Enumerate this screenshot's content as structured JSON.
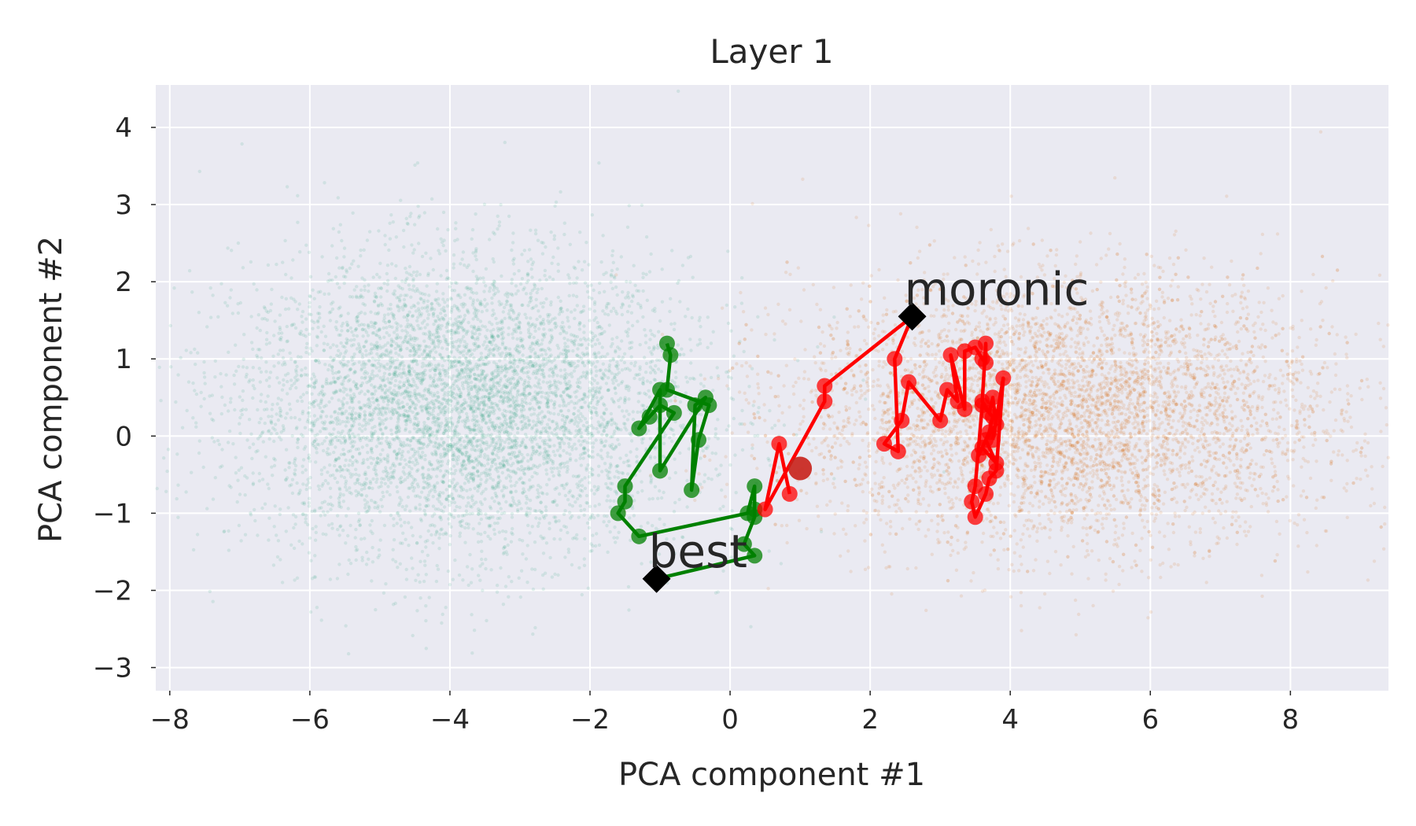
{
  "chart_data": {
    "type": "scatter",
    "title": "Layer 1",
    "xlabel": "PCA component #1",
    "ylabel": "PCA component #2",
    "xlim": [
      -8.2,
      9.4
    ],
    "ylim": [
      -3.3,
      4.55
    ],
    "xticks": [
      -8,
      -6,
      -4,
      -2,
      0,
      2,
      4,
      6,
      8
    ],
    "yticks": [
      -3,
      -2,
      -1,
      0,
      1,
      2,
      3,
      4
    ],
    "xtick_labels": [
      "−8",
      "−6",
      "−4",
      "−2",
      "0",
      "2",
      "4",
      "6",
      "8"
    ],
    "ytick_labels": [
      "−3",
      "−2",
      "−1",
      "0",
      "1",
      "2",
      "3",
      "4"
    ],
    "grid": true,
    "background_colors": {
      "plot_bg": "#eaeaf2",
      "grid": "#ffffff"
    },
    "clouds": [
      {
        "color": "#1b9e77",
        "center": [
          -3.8,
          0.4
        ],
        "spread": [
          1.6,
          0.95
        ],
        "approx_points": 6000
      },
      {
        "color": "#d95f02",
        "center": [
          4.8,
          0.3
        ],
        "spread": [
          1.9,
          0.85
        ],
        "approx_points": 6000
      }
    ],
    "trajectories": [
      {
        "color": "#008000",
        "points": [
          [
            -1.05,
            -1.85
          ],
          [
            0.35,
            -1.55
          ],
          [
            0.2,
            -1.4
          ],
          [
            0.35,
            -1.05
          ],
          [
            0.35,
            -0.95
          ],
          [
            0.35,
            -0.65
          ],
          [
            0.25,
            -1.0
          ],
          [
            -1.3,
            -1.3
          ],
          [
            -1.6,
            -1.0
          ],
          [
            -1.5,
            -0.85
          ],
          [
            -1.5,
            -0.65
          ],
          [
            -0.8,
            0.3
          ],
          [
            -1.0,
            0.4
          ],
          [
            -1.15,
            0.25
          ],
          [
            -1.3,
            0.1
          ],
          [
            -1.0,
            0.6
          ],
          [
            -1.0,
            -0.45
          ],
          [
            -0.35,
            0.5
          ],
          [
            -0.5,
            0.4
          ],
          [
            -0.55,
            -0.7
          ],
          [
            -0.45,
            -0.05
          ],
          [
            -0.3,
            0.4
          ],
          [
            -0.9,
            0.6
          ],
          [
            -0.85,
            1.05
          ],
          [
            -0.9,
            1.2
          ]
        ]
      },
      {
        "color": "#ff0000",
        "points": [
          [
            0.85,
            -0.75
          ],
          [
            0.7,
            -0.1
          ],
          [
            0.5,
            -0.95
          ],
          [
            1.35,
            0.45
          ],
          [
            1.35,
            0.65
          ],
          [
            2.6,
            1.55
          ],
          [
            2.35,
            1.0
          ],
          [
            2.4,
            -0.2
          ],
          [
            2.2,
            -0.1
          ],
          [
            2.45,
            0.2
          ],
          [
            2.55,
            0.7
          ],
          [
            3.0,
            0.2
          ],
          [
            3.1,
            0.6
          ],
          [
            3.25,
            0.45
          ],
          [
            3.15,
            1.05
          ],
          [
            3.35,
            0.35
          ],
          [
            3.35,
            1.1
          ],
          [
            3.5,
            1.15
          ],
          [
            3.6,
            1.0
          ],
          [
            3.65,
            0.95
          ],
          [
            3.65,
            1.2
          ],
          [
            3.6,
            0.45
          ],
          [
            3.7,
            0.3
          ],
          [
            3.75,
            0.5
          ],
          [
            3.8,
            0.15
          ],
          [
            3.65,
            -0.05
          ],
          [
            3.8,
            -0.35
          ],
          [
            3.6,
            -0.15
          ],
          [
            3.55,
            -0.25
          ],
          [
            3.7,
            0.05
          ],
          [
            3.75,
            0.25
          ],
          [
            3.6,
            0.4
          ],
          [
            3.5,
            -0.65
          ],
          [
            3.45,
            -0.85
          ],
          [
            3.5,
            -1.05
          ],
          [
            3.65,
            -0.75
          ],
          [
            3.7,
            -0.55
          ],
          [
            3.8,
            -0.45
          ],
          [
            3.9,
            0.75
          ],
          [
            3.75,
            -0.05
          ]
        ]
      }
    ],
    "start_point": {
      "x": 1.0,
      "y": -0.42,
      "color": "#c8211a"
    },
    "annotations": [
      {
        "text": "best",
        "x": -1.05,
        "y": -1.85
      },
      {
        "text": "moronic",
        "x": 2.6,
        "y": 1.55
      }
    ]
  }
}
